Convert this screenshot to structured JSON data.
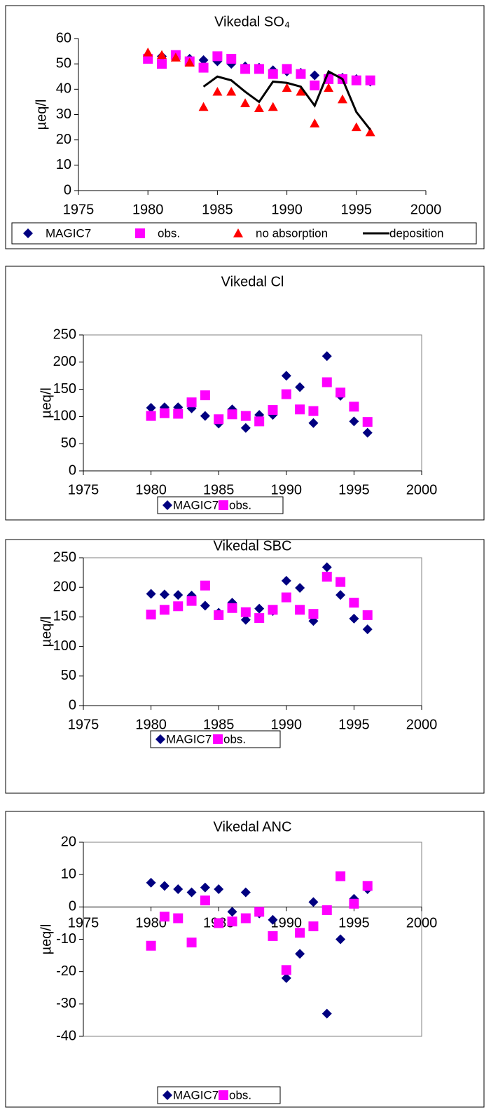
{
  "chart_data": [
    {
      "type": "scatter",
      "title": "Vikedal SO₄",
      "y_label": "µeq/l",
      "frame": false,
      "x": [
        1980,
        1981,
        1982,
        1983,
        1984,
        1985,
        1986,
        1987,
        1988,
        1989,
        1990,
        1991,
        1992,
        1993,
        1994,
        1995,
        1996
      ],
      "xlim": [
        1975,
        2000
      ],
      "xticks": [
        1975,
        1980,
        1985,
        1990,
        1995,
        2000
      ],
      "ylim": [
        0,
        60
      ],
      "yticks": [
        0,
        10,
        20,
        30,
        40,
        50,
        60
      ],
      "series": [
        {
          "name": "MAGIC7",
          "color": "#000080",
          "marker": "diamond",
          "values": [
            53,
            53,
            53,
            52,
            51.5,
            51,
            50,
            49,
            48.5,
            47.5,
            47,
            46.5,
            45.5,
            45,
            44.5,
            44,
            43
          ]
        },
        {
          "name": "obs.",
          "color": "#ff00ff",
          "marker": "square",
          "values": [
            52,
            50,
            53.5,
            51,
            48.5,
            53,
            52,
            48,
            48,
            46,
            48,
            46,
            41.5,
            44,
            44,
            43.5,
            43.5
          ]
        },
        {
          "name": "no absorption",
          "color": "#ff0000",
          "marker": "triangle",
          "values": [
            54.5,
            53.5,
            52.5,
            50.5,
            33,
            39,
            39,
            34.5,
            32.5,
            33,
            40.5,
            39,
            26.5,
            40.5,
            36,
            25,
            23
          ]
        },
        {
          "name": "deposition",
          "color": "#000000",
          "marker": "line",
          "values": [
            null,
            null,
            null,
            null,
            41,
            45,
            43.5,
            39,
            35,
            43,
            42.5,
            41,
            33.5,
            47,
            44,
            31,
            24
          ]
        }
      ]
    },
    {
      "type": "scatter",
      "title": "Vikedal Cl",
      "y_label": "µeq/l",
      "frame": true,
      "x": [
        1980,
        1981,
        1982,
        1983,
        1984,
        1985,
        1986,
        1987,
        1988,
        1989,
        1990,
        1991,
        1992,
        1993,
        1994,
        1995,
        1996
      ],
      "xlim": [
        1975,
        2000
      ],
      "xticks": [
        1975,
        1980,
        1985,
        1990,
        1995,
        2000
      ],
      "ylim": [
        0,
        250
      ],
      "yticks": [
        0,
        50,
        100,
        150,
        200,
        250
      ],
      "series": [
        {
          "name": "MAGIC7",
          "color": "#000080",
          "marker": "diamond",
          "values": [
            116,
            117,
            117,
            115,
            101,
            87,
            113,
            79,
            103,
            103,
            175,
            154,
            88,
            211,
            138,
            91,
            70
          ]
        },
        {
          "name": "obs.",
          "color": "#ff00ff",
          "marker": "square",
          "values": [
            101,
            106,
            105,
            126,
            139,
            95,
            104,
            101,
            91,
            112,
            141,
            113,
            110,
            163,
            144,
            118,
            90
          ]
        }
      ]
    },
    {
      "type": "scatter",
      "title": "Vikedal SBC",
      "y_label": "µeq/l",
      "frame": true,
      "x": [
        1980,
        1981,
        1982,
        1983,
        1984,
        1985,
        1986,
        1987,
        1988,
        1989,
        1990,
        1991,
        1992,
        1993,
        1994,
        1995,
        1996
      ],
      "xlim": [
        1975,
        2000
      ],
      "xticks": [
        1975,
        1980,
        1985,
        1990,
        1995,
        2000
      ],
      "ylim": [
        0,
        250
      ],
      "yticks": [
        0,
        50,
        100,
        150,
        200,
        250
      ],
      "series": [
        {
          "name": "MAGIC7",
          "color": "#000080",
          "marker": "diamond",
          "values": [
            189,
            188,
            187,
            186,
            169,
            157,
            174,
            145,
            164,
            160,
            211,
            199,
            143,
            234,
            187,
            147,
            129
          ]
        },
        {
          "name": "obs.",
          "color": "#ff00ff",
          "marker": "square",
          "values": [
            154,
            162,
            168,
            177,
            203,
            153,
            165,
            158,
            148,
            162,
            183,
            162,
            155,
            218,
            209,
            174,
            153
          ]
        }
      ]
    },
    {
      "type": "scatter",
      "title": "Vikedal ANC",
      "y_label": "µeq/l",
      "frame": true,
      "x": [
        1980,
        1981,
        1982,
        1983,
        1984,
        1985,
        1986,
        1987,
        1988,
        1989,
        1990,
        1991,
        1992,
        1993,
        1994,
        1995,
        1996
      ],
      "xlim": [
        1975,
        2000
      ],
      "xticks": [
        1975,
        1980,
        1985,
        1990,
        1995,
        2000
      ],
      "ylim": [
        -40,
        20
      ],
      "yticks": [
        -40,
        -30,
        -20,
        -10,
        0,
        10,
        20
      ],
      "series": [
        {
          "name": "MAGIC7",
          "color": "#000080",
          "marker": "diamond",
          "values": [
            7.5,
            6.5,
            5.5,
            4.5,
            6,
            5.5,
            -1.5,
            4.5,
            -2,
            -4,
            -22,
            -14.5,
            1.5,
            -33,
            -10,
            2.5,
            5.5
          ]
        },
        {
          "name": "obs.",
          "color": "#ff00ff",
          "marker": "square",
          "values": [
            -12,
            -3,
            -3.5,
            -11,
            2,
            -5,
            -4.5,
            -3.5,
            -1.5,
            -9,
            -19.5,
            -8,
            -6,
            -1,
            9.5,
            1,
            6.5
          ]
        }
      ]
    }
  ]
}
